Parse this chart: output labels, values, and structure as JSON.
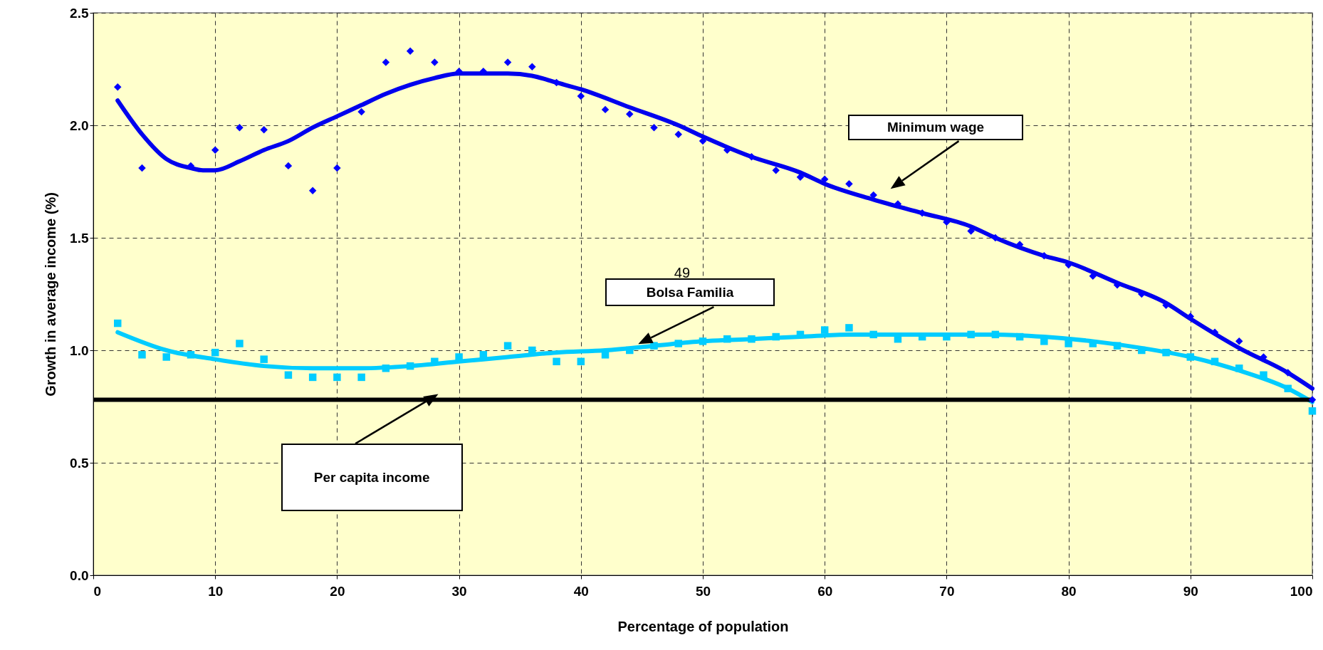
{
  "chart_data": {
    "type": "scatter",
    "xlabel": "Percentage of population",
    "ylabel": "Growth in average income (%)",
    "xlim": [
      0,
      100
    ],
    "ylim": [
      0,
      2.5
    ],
    "xticks": [
      0,
      10,
      20,
      30,
      40,
      50,
      60,
      70,
      80,
      90,
      100
    ],
    "yticks": [
      {
        "value": 0,
        "label": "0.0"
      },
      {
        "value": 0.5,
        "label": "0.5"
      },
      {
        "value": 1,
        "label": "1.0"
      },
      {
        "value": 1.5,
        "label": "1.5"
      },
      {
        "value": 2,
        "label": "2.0"
      },
      {
        "value": 2.5,
        "label": "2.5"
      }
    ],
    "grid": true,
    "series": [
      {
        "marker": "diamond",
        "color": "#0000ff",
        "x": [
          2,
          4,
          8,
          10,
          12,
          14,
          16,
          18,
          20,
          22,
          24,
          26,
          28,
          30,
          32,
          34,
          36,
          38,
          40,
          42,
          44,
          46,
          48,
          50,
          52,
          54,
          56,
          58,
          60,
          62,
          64,
          66,
          68,
          70,
          72,
          74,
          76,
          78,
          80,
          82,
          84,
          86,
          88,
          90,
          92,
          94,
          96,
          98,
          100
        ],
        "values": [
          2.17,
          1.81,
          1.82,
          1.89,
          1.99,
          1.98,
          1.82,
          1.71,
          1.81,
          2.06,
          2.28,
          2.33,
          2.28,
          2.24,
          2.24,
          2.28,
          2.26,
          2.19,
          2.13,
          2.07,
          2.05,
          1.99,
          1.96,
          1.93,
          1.89,
          1.86,
          1.8,
          1.77,
          1.76,
          1.74,
          1.69,
          1.65,
          1.61,
          1.57,
          1.53,
          1.5,
          1.47,
          1.42,
          1.38,
          1.33,
          1.29,
          1.25,
          1.2,
          1.15,
          1.08,
          1.04,
          0.97,
          0.9,
          0.78
        ]
      },
      {
        "marker": "square",
        "color": "#00ccff",
        "x": [
          2,
          4,
          6,
          8,
          10,
          12,
          14,
          16,
          18,
          20,
          22,
          24,
          26,
          28,
          30,
          32,
          34,
          36,
          38,
          40,
          42,
          44,
          46,
          48,
          50,
          52,
          54,
          56,
          58,
          60,
          62,
          64,
          66,
          68,
          70,
          72,
          74,
          76,
          78,
          80,
          82,
          84,
          86,
          88,
          90,
          92,
          94,
          96,
          98,
          100
        ],
        "values": [
          1.12,
          0.98,
          0.97,
          0.98,
          0.99,
          1.03,
          0.96,
          0.89,
          0.88,
          0.88,
          0.88,
          0.92,
          0.93,
          0.95,
          0.97,
          0.98,
          1.02,
          1.0,
          0.95,
          0.95,
          0.98,
          1.0,
          1.02,
          1.03,
          1.04,
          1.05,
          1.05,
          1.06,
          1.07,
          1.09,
          1.1,
          1.07,
          1.05,
          1.06,
          1.06,
          1.07,
          1.07,
          1.06,
          1.04,
          1.03,
          1.03,
          1.02,
          1.0,
          0.99,
          0.97,
          0.95,
          0.92,
          0.89,
          0.83,
          0.73
        ]
      },
      {
        "type": "line",
        "color": "#0000ee",
        "x": [
          2,
          4,
          6,
          8,
          9,
          10,
          12,
          14,
          16,
          18,
          20,
          22,
          24,
          26,
          28,
          30,
          32,
          34,
          36,
          38,
          40,
          44,
          48,
          50,
          54,
          58,
          60,
          64,
          68,
          72,
          74,
          78,
          80,
          84,
          88,
          90,
          94,
          98,
          100
        ],
        "values": [
          2.11,
          1.96,
          1.85,
          1.81,
          1.8,
          1.8,
          1.84,
          1.89,
          1.93,
          1.99,
          2.04,
          2.09,
          2.14,
          2.18,
          2.21,
          2.23,
          2.23,
          2.23,
          2.22,
          2.19,
          2.16,
          2.08,
          2.0,
          1.95,
          1.86,
          1.79,
          1.74,
          1.67,
          1.61,
          1.55,
          1.5,
          1.42,
          1.39,
          1.3,
          1.21,
          1.14,
          1.01,
          0.9,
          0.83
        ]
      },
      {
        "type": "line",
        "color": "#00ccff",
        "x": [
          2,
          6,
          10,
          14,
          18,
          22,
          26,
          30,
          34,
          38,
          42,
          46,
          50,
          54,
          58,
          62,
          66,
          70,
          74,
          78,
          82,
          86,
          90,
          94,
          98,
          100
        ],
        "values": [
          1.08,
          1.0,
          0.96,
          0.93,
          0.92,
          0.92,
          0.93,
          0.95,
          0.97,
          0.99,
          1.0,
          1.02,
          1.04,
          1.05,
          1.06,
          1.07,
          1.07,
          1.07,
          1.07,
          1.06,
          1.04,
          1.01,
          0.97,
          0.91,
          0.83,
          0.77
        ]
      }
    ],
    "ref_lines": [
      {
        "axis": "y",
        "value": 0.78,
        "color": "#000000"
      }
    ],
    "annotations": [
      "Minimum wage",
      "Bolsa Familia",
      "Per capita income",
      "49"
    ]
  }
}
